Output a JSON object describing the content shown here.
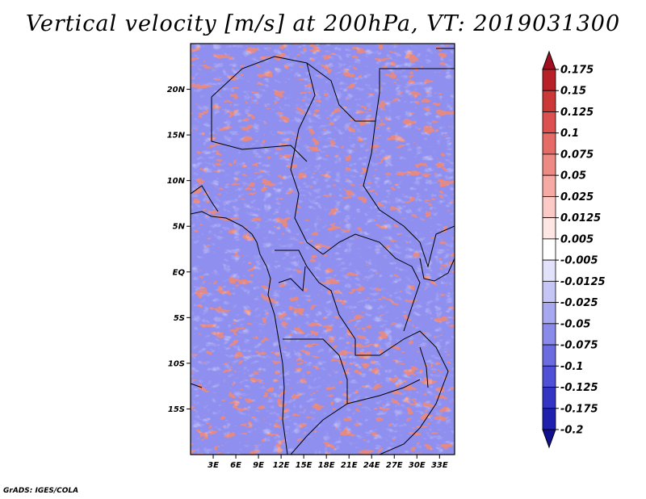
{
  "title": "Vertical velocity [m/s] at 200hPa, VT: 2019031300",
  "credit": "GrADS: IGES/COLA",
  "map": {
    "lon_range": [
      0,
      35
    ],
    "lat_range": [
      -20,
      25
    ],
    "lon_ticks": [
      "3E",
      "6E",
      "9E",
      "12E",
      "15E",
      "18E",
      "21E",
      "24E",
      "27E",
      "30E",
      "33E"
    ],
    "lat_ticks": [
      "20N",
      "15N",
      "10N",
      "5N",
      "EQ",
      "5S",
      "10S",
      "15S"
    ]
  },
  "colorbar": {
    "levels": [
      "0.175",
      "0.15",
      "0.125",
      "0.1",
      "0.075",
      "0.05",
      "0.025",
      "0.0125",
      "0.005",
      "-0.005",
      "-0.0125",
      "-0.025",
      "-0.05",
      "-0.075",
      "-0.1",
      "-0.125",
      "-0.175",
      "-0.2"
    ],
    "colors": [
      "#a01020",
      "#b82028",
      "#cc3838",
      "#dc5050",
      "#e66a66",
      "#ee8a84",
      "#f5aaa4",
      "#fbcac6",
      "#fde6e4",
      "#ffffff",
      "#e2e2fb",
      "#c6c6f6",
      "#a8a8f0",
      "#8a8aea",
      "#6c6ce0",
      "#5050d6",
      "#3434c4",
      "#2020ae",
      "#101090"
    ]
  }
}
